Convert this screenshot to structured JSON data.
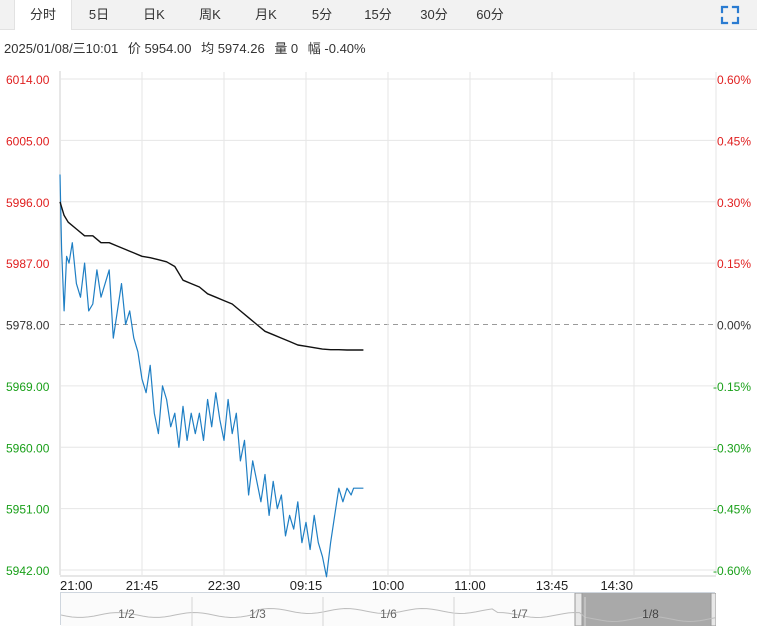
{
  "tabs": [
    {
      "label": "分时",
      "active": true
    },
    {
      "label": "5日",
      "active": false
    },
    {
      "label": "日K",
      "active": false
    },
    {
      "label": "周K",
      "active": false
    },
    {
      "label": "月K",
      "active": false
    },
    {
      "label": "5分",
      "active": false
    },
    {
      "label": "15分",
      "active": false
    },
    {
      "label": "30分",
      "active": false
    },
    {
      "label": "60分",
      "active": false
    }
  ],
  "fullscreen_icon": "expand-icon",
  "info": {
    "datetime": "2025/01/08/三10:01",
    "price": "价 5954.00",
    "avg": "均 5974.26",
    "volume": "量 0",
    "change": "幅 -0.40%"
  },
  "colors": {
    "up": "#e02020",
    "down": "#1aa01a",
    "neutral": "#333333",
    "price_line": "#1f7fc4",
    "avg_line": "#111111",
    "grid": "#e6e6e6"
  },
  "chart_data": {
    "type": "line",
    "ylim": [
      5942,
      6014
    ],
    "base_price": 5978.0,
    "y_ticks_left": [
      "6014.00",
      "6005.00",
      "5996.00",
      "5987.00",
      "5978.00",
      "5969.00",
      "5960.00",
      "5951.00",
      "5942.00"
    ],
    "y_ticks_right": [
      "0.60%",
      "0.45%",
      "0.30%",
      "0.15%",
      "0.00%",
      "-0.15%",
      "-0.30%",
      "-0.45%",
      "-0.60%"
    ],
    "x_ticks": [
      "21:00",
      "21:45",
      "22:30",
      "09:15",
      "10:00",
      "11:00",
      "13:45",
      "14:30"
    ],
    "x_slots": 8,
    "series": [
      {
        "name": "价",
        "x": [
          0,
          0.02,
          0.05,
          0.08,
          0.11,
          0.15,
          0.2,
          0.25,
          0.3,
          0.35,
          0.4,
          0.45,
          0.5,
          0.55,
          0.6,
          0.65,
          0.7,
          0.75,
          0.8,
          0.85,
          0.9,
          0.95,
          1.0,
          1.05,
          1.1,
          1.15,
          1.2,
          1.25,
          1.3,
          1.35,
          1.4,
          1.45,
          1.5,
          1.55,
          1.6,
          1.65,
          1.7,
          1.75,
          1.8,
          1.85,
          1.9,
          1.95,
          2.0,
          2.05,
          2.1,
          2.15,
          2.2,
          2.25,
          2.3,
          2.35,
          2.4,
          2.45,
          2.5,
          2.55,
          2.6,
          2.65,
          2.7,
          2.75,
          2.8,
          2.85,
          2.9,
          2.95,
          3.0,
          3.05,
          3.1,
          3.15,
          3.2,
          3.25,
          3.3,
          3.35,
          3.4,
          3.45,
          3.5,
          3.55,
          3.58,
          3.61,
          3.64,
          3.67,
          3.7
        ],
        "values": [
          6000,
          5989,
          5980,
          5988,
          5987,
          5990,
          5984,
          5982,
          5987,
          5980,
          5981,
          5986,
          5982,
          5984,
          5986,
          5976,
          5980,
          5984,
          5978,
          5980,
          5976,
          5974,
          5970,
          5968,
          5972,
          5965,
          5962,
          5969,
          5967,
          5963,
          5965,
          5960,
          5966,
          5961,
          5965,
          5962,
          5965,
          5961,
          5967,
          5963,
          5968,
          5964,
          5961,
          5967,
          5962,
          5965,
          5958,
          5961,
          5953,
          5958,
          5955,
          5952,
          5956,
          5950,
          5955,
          5951,
          5953,
          5947,
          5950,
          5948,
          5952,
          5946,
          5949,
          5945,
          5950,
          5946,
          5944,
          5941,
          5946,
          5950,
          5954,
          5952,
          5954,
          5953,
          5954,
          5954,
          5954,
          5954,
          5954
        ]
      },
      {
        "name": "均",
        "x": [
          0,
          0.05,
          0.1,
          0.2,
          0.3,
          0.4,
          0.5,
          0.6,
          0.7,
          0.8,
          0.9,
          1.0,
          1.1,
          1.2,
          1.3,
          1.4,
          1.5,
          1.6,
          1.7,
          1.8,
          1.9,
          2.0,
          2.1,
          2.2,
          2.3,
          2.4,
          2.5,
          2.6,
          2.7,
          2.8,
          2.9,
          3.0,
          3.1,
          3.2,
          3.3,
          3.4,
          3.5,
          3.6,
          3.7
        ],
        "values": [
          5996,
          5994,
          5993,
          5992,
          5991,
          5991,
          5990,
          5990,
          5989.5,
          5989,
          5988.5,
          5988,
          5987.8,
          5987.5,
          5987.2,
          5986.5,
          5984.5,
          5984,
          5983.5,
          5982.5,
          5982,
          5981.5,
          5981,
          5980,
          5979,
          5978,
          5977,
          5976.5,
          5976,
          5975.5,
          5975,
          5974.8,
          5974.6,
          5974.4,
          5974.3,
          5974.3,
          5974.26,
          5974.26,
          5974.26
        ]
      }
    ]
  },
  "navigator": {
    "dates": [
      "1/2",
      "1/3",
      "1/6",
      "1/7",
      "1/8"
    ]
  }
}
